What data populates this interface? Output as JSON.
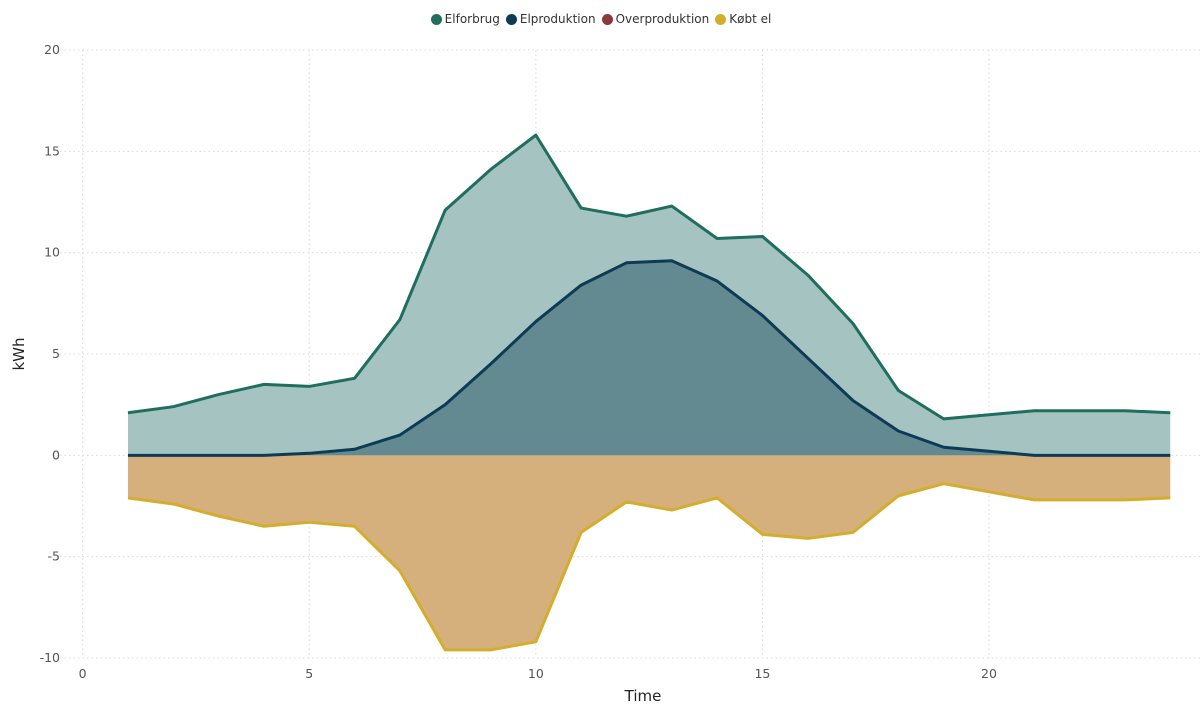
{
  "chart_data": {
    "type": "area",
    "title": "",
    "xlabel": "Time",
    "ylabel": "kWh",
    "xlim": [
      -0.5,
      24.7
    ],
    "ylim": [
      -10,
      20
    ],
    "xticks": [
      0,
      5,
      10,
      15,
      20
    ],
    "yticks": [
      20,
      15,
      10,
      5,
      0,
      -5,
      -10
    ],
    "grid": true,
    "legend_position": "top-center",
    "x": [
      1,
      2,
      3,
      4,
      5,
      6,
      7,
      8,
      9,
      10,
      11,
      12,
      13,
      14,
      15,
      16,
      17,
      18,
      19,
      20,
      21,
      22,
      23,
      24
    ],
    "series": [
      {
        "name": "Elforbrug",
        "color": "#1f6e5e",
        "fill": "#a5c3c0",
        "values": [
          2.1,
          2.4,
          3.0,
          3.5,
          3.4,
          3.8,
          6.7,
          12.1,
          14.1,
          15.8,
          12.2,
          11.8,
          12.3,
          10.7,
          10.8,
          8.9,
          6.5,
          3.2,
          1.8,
          2.0,
          2.2,
          2.2,
          2.2,
          2.1
        ]
      },
      {
        "name": "Elproduktion",
        "color": "#0d3b55",
        "fill": "#628a90",
        "values": [
          0,
          0,
          0,
          0,
          0.1,
          0.3,
          1.0,
          2.5,
          4.5,
          6.6,
          8.4,
          9.5,
          9.6,
          8.6,
          6.9,
          4.8,
          2.7,
          1.2,
          0.4,
          0.2,
          0,
          0,
          0,
          0
        ]
      },
      {
        "name": "Overproduktion",
        "color": "#8b3a3a",
        "fill": "#8b3a3a",
        "values": [
          0,
          0,
          0,
          0,
          0,
          0,
          0,
          0,
          0,
          0,
          0,
          0,
          0,
          0,
          0,
          0,
          0,
          0,
          0,
          0,
          0,
          0,
          0,
          0
        ]
      },
      {
        "name": "Købt el",
        "color": "#d4ad2c",
        "fill": "#d6b07c",
        "values": [
          -2.1,
          -2.4,
          -3.0,
          -3.5,
          -3.3,
          -3.5,
          -5.7,
          -9.6,
          -9.6,
          -9.2,
          -3.8,
          -2.3,
          -2.7,
          -2.1,
          -3.9,
          -4.1,
          -3.8,
          -2.0,
          -1.4,
          -1.8,
          -2.2,
          -2.2,
          -2.2,
          -2.1
        ]
      }
    ]
  }
}
